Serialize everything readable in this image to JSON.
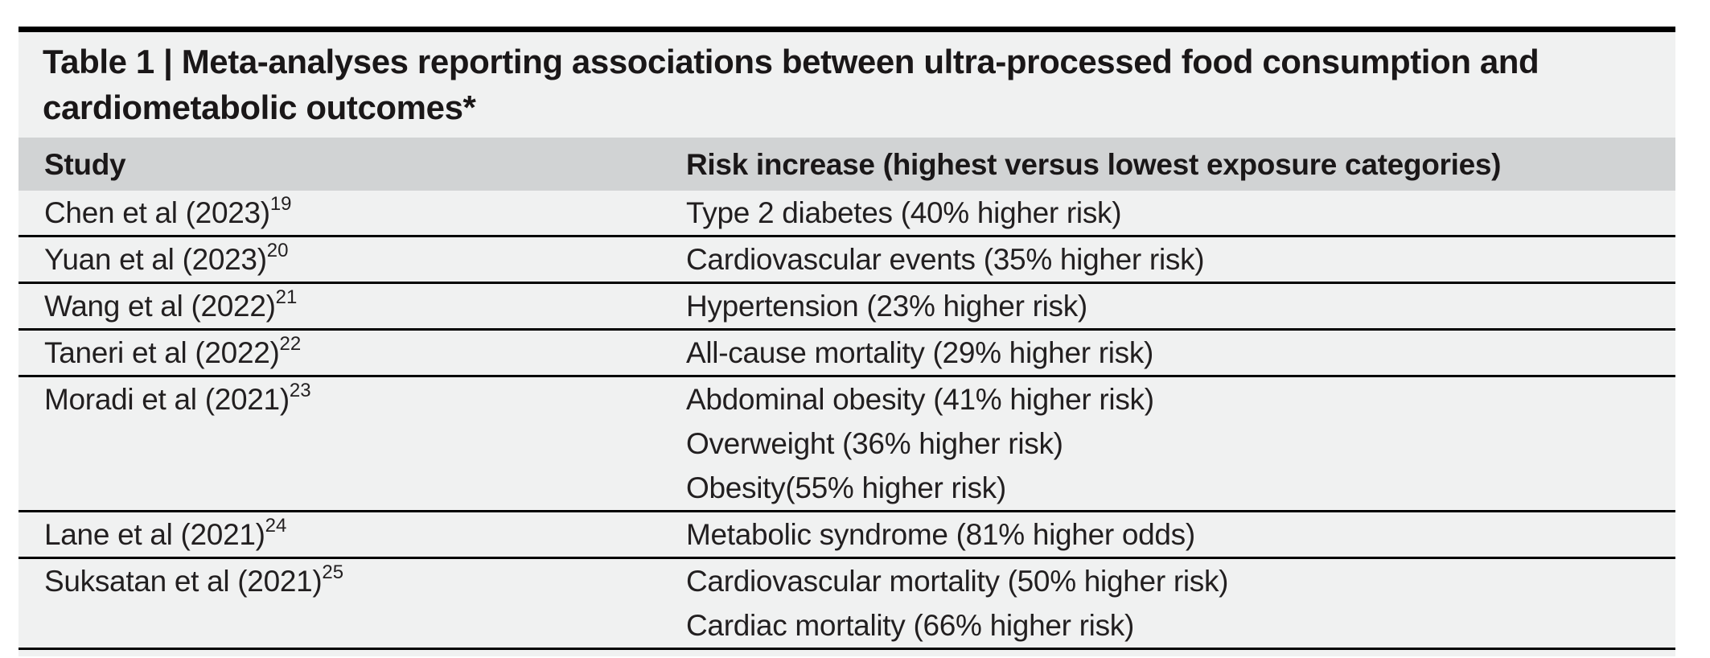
{
  "table": {
    "title": "Table 1 | Meta-analyses reporting associations between ultra-processed food consumption and cardiometabolic outcomes*",
    "columns": {
      "study": "Study",
      "risk": "Risk increase (highest versus lowest exposure categories)"
    },
    "rows": [
      {
        "study": "Chen et al (2023)",
        "ref": "19",
        "outcomes": [
          "Type 2 diabetes (40% higher risk)"
        ]
      },
      {
        "study": "Yuan et al (2023)",
        "ref": "20",
        "outcomes": [
          "Cardiovascular events (35% higher risk)"
        ]
      },
      {
        "study": "Wang et al (2022)",
        "ref": "21",
        "outcomes": [
          "Hypertension (23% higher risk)"
        ]
      },
      {
        "study": "Taneri et al (2022)",
        "ref": "22",
        "outcomes": [
          "All-cause mortality (29% higher risk)"
        ]
      },
      {
        "study": "Moradi et al (2021)",
        "ref": "23",
        "outcomes": [
          "Abdominal obesity (41% higher risk)",
          "Overweight (36% higher risk)",
          "Obesity(55% higher risk)"
        ]
      },
      {
        "study": "Lane et al (2021)",
        "ref": "24",
        "outcomes": [
          "Metabolic syndrome (81% higher odds)"
        ]
      },
      {
        "study": "Suksatan et al (2021)",
        "ref": "25",
        "outcomes": [
          "Cardiovascular mortality (50% higher risk)",
          "Cardiac mortality (66% higher risk)"
        ]
      }
    ],
    "colors": {
      "header_bg": "#d1d3d4",
      "row_bg": "#f0f1f1",
      "rule": "#000000",
      "text": "#221f20"
    }
  }
}
